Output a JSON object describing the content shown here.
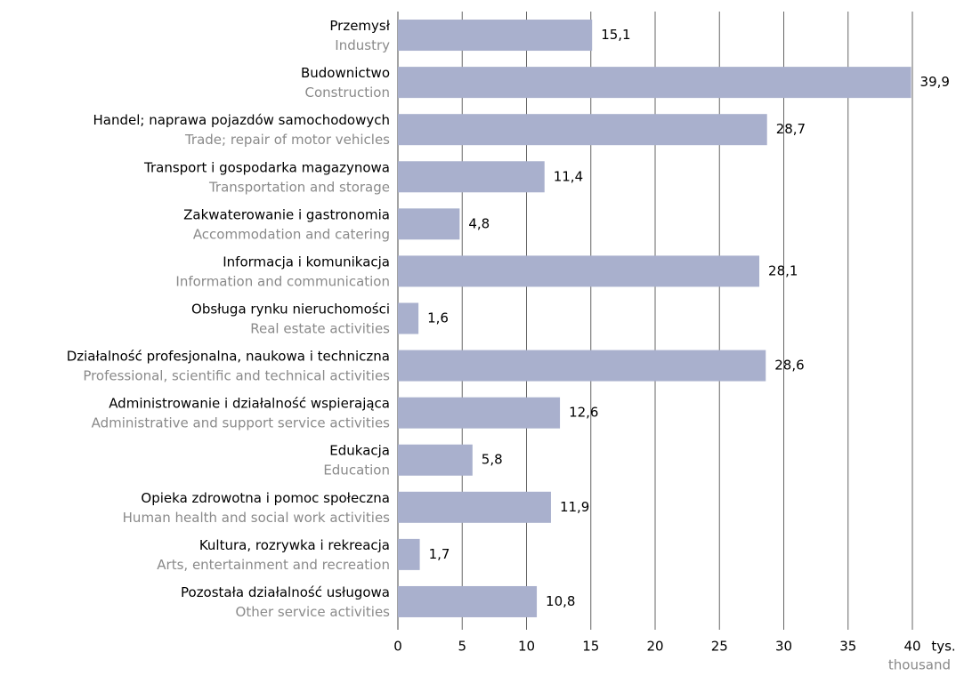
{
  "chart_data": {
    "type": "bar",
    "orientation": "horizontal",
    "categories": [
      "Przemysł",
      "Budownictwo",
      "Handel; naprawa pojazdów samochodowych",
      "Transport i gospodarka magazynowa",
      "Zakwaterowanie i gastronomia",
      "Informacja i komunikacja",
      "Obsługa rynku nieruchomości",
      "Działalność profesjonalna, naukowa i techniczna",
      "Administrowanie i działalność wspierająca",
      "Edukacja",
      "Opieka zdrowotna i pomoc społeczna",
      "Kultura, rozrywka i rekreacja",
      "Pozostała działalność usługowa"
    ],
    "categories_en": [
      "Industry",
      "Construction",
      "Trade; repair of motor vehicles",
      "Transportation and storage",
      "Accommodation and catering",
      "Information and communication",
      "Real estate activities",
      "Professional, scientific and technical activities",
      "Administrative and support service activities",
      "Education",
      "Human health and social work activities",
      "Arts, entertainment and recreation",
      "Other service activities"
    ],
    "values": [
      15.1,
      39.9,
      28.7,
      11.4,
      4.8,
      28.1,
      1.6,
      28.6,
      12.6,
      5.8,
      11.9,
      1.7,
      10.8
    ],
    "value_labels": [
      "15,1",
      "39,9",
      "28,7",
      "11,4",
      "4,8",
      "28,1",
      "1,6",
      "28,6",
      "12,6",
      "5,8",
      "11,9",
      "1,7",
      "10,8"
    ],
    "color": "#a9b0cd",
    "xlim": [
      0,
      40
    ],
    "xticks": [
      0,
      5,
      10,
      15,
      20,
      25,
      30,
      35,
      40
    ],
    "unit": "tys.",
    "unit_en": "thousand",
    "grid": true
  }
}
